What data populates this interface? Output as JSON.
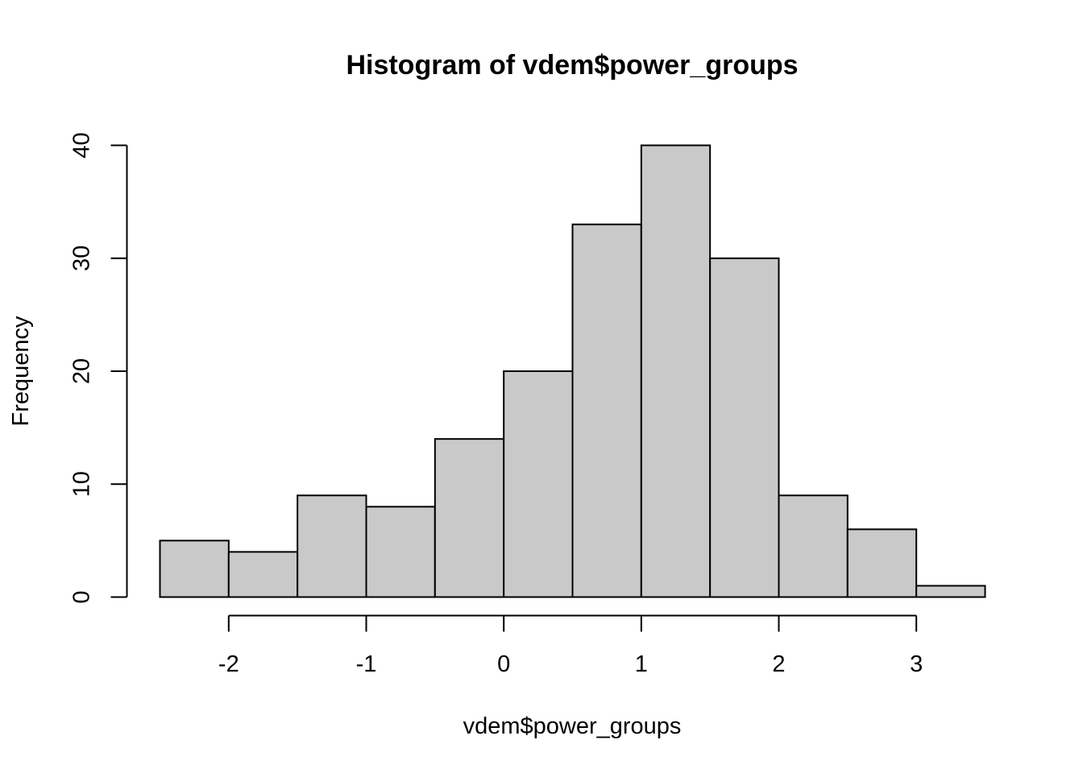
{
  "chart_data": {
    "type": "bar",
    "title": "Histogram of vdem$power_groups",
    "xlabel": "vdem$power_groups",
    "ylabel": "Frequency",
    "bin_edges": [
      -2.5,
      -2.0,
      -1.5,
      -1.0,
      -0.5,
      0.0,
      0.5,
      1.0,
      1.5,
      2.0,
      2.5,
      3.0,
      3.5
    ],
    "values": [
      5,
      4,
      9,
      8,
      14,
      20,
      33,
      40,
      30,
      9,
      6,
      1
    ],
    "x_ticks": [
      -2,
      -1,
      0,
      1,
      2,
      3
    ],
    "x_tick_labels": [
      "-2",
      "-1",
      "0",
      "1",
      "2",
      "3"
    ],
    "y_ticks": [
      0,
      10,
      20,
      30,
      40
    ],
    "y_tick_labels": [
      "0",
      "10",
      "20",
      "30",
      "40"
    ],
    "xlim": [
      -2.5,
      3.5
    ],
    "ylim": [
      0,
      40
    ],
    "bar_color": "#c9c9c9",
    "grid": false,
    "legend": "none"
  }
}
